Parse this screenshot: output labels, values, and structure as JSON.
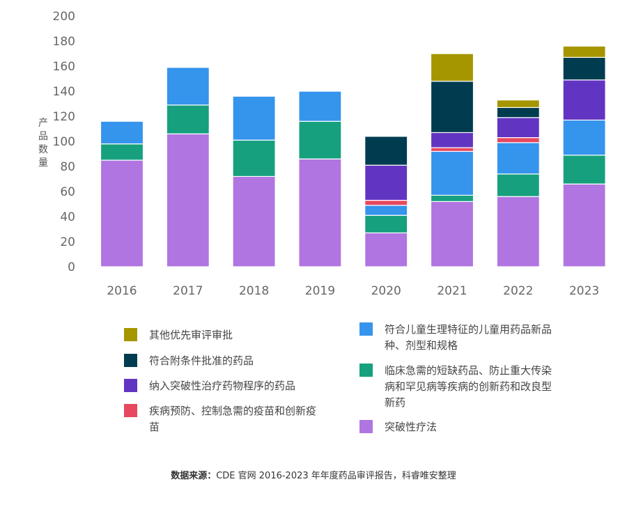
{
  "chart_data": {
    "type": "bar",
    "stacked": true,
    "categories": [
      "2016",
      "2017",
      "2018",
      "2019",
      "2020",
      "2021",
      "2022",
      "2023"
    ],
    "ylabel": "产品数量",
    "xlabel": "",
    "ylim": [
      0,
      200
    ],
    "yticks": [
      0,
      20,
      40,
      60,
      80,
      100,
      120,
      140,
      160,
      180,
      200
    ],
    "grid": false,
    "legend_position": "bottom",
    "series": [
      {
        "name": "突破性疗法",
        "color": "#b075e0",
        "values": [
          85,
          106,
          72,
          86,
          27,
          52,
          56,
          66
        ]
      },
      {
        "name": "临床急需的短缺药品、防止重大传染病和罕见病等疾病的创新药和改良型新药",
        "color": "#16a07e",
        "values": [
          13,
          23,
          29,
          30,
          14,
          5,
          18,
          23
        ]
      },
      {
        "name": "符合儿童生理特征的儿童用药品新品种、剂型和规格",
        "color": "#3594ec",
        "values": [
          18,
          30,
          35,
          24,
          8,
          35,
          25,
          28
        ]
      },
      {
        "name": "疾病预防、控制急需的疫苗和创新疫苗",
        "color": "#e8485f",
        "values": [
          0,
          0,
          0,
          0,
          4,
          3,
          4,
          0
        ]
      },
      {
        "name": "纳入突破性治疗药物程序的药品",
        "color": "#6234c2",
        "values": [
          0,
          0,
          0,
          0,
          28,
          12,
          16,
          32
        ]
      },
      {
        "name": "符合附条件批准的药品",
        "color": "#003c50",
        "values": [
          0,
          0,
          0,
          0,
          23,
          41,
          8,
          18
        ]
      },
      {
        "name": "其他优先审评审批",
        "color": "#a59600",
        "values": [
          0,
          0,
          0,
          0,
          0,
          22,
          6,
          9
        ]
      }
    ]
  },
  "legend_left": [
    {
      "label": "其他优先审评审批",
      "color": "#a59600"
    },
    {
      "label": "符合附条件批准的药品",
      "color": "#003c50"
    },
    {
      "label": "纳入突破性治疗药物程序的药品",
      "color": "#6234c2"
    },
    {
      "label": "疾病预防、控制急需的疫苗和创新疫苗",
      "color": "#e8485f"
    }
  ],
  "legend_right": [
    {
      "label": "符合儿童生理特征的儿童用药品新品种、剂型和规格",
      "color": "#3594ec"
    },
    {
      "label": "临床急需的短缺药品、防止重大传染病和罕见病等疾病的创新药和改良型新药",
      "color": "#16a07e"
    },
    {
      "label": "突破性疗法",
      "color": "#b075e0"
    }
  ],
  "source": {
    "label": "数据来源：",
    "text": "CDE 官网 2016-2023 年年度药品审评报告，科睿唯安整理"
  }
}
